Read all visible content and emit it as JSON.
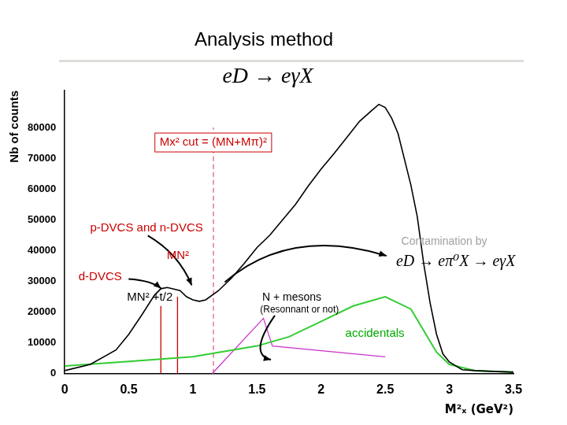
{
  "chart_data": {
    "type": "line",
    "title": "Analysis method",
    "subtitle": "eD → eγX",
    "x_label": "M²ₓ (GeV²)",
    "y_label": "Nb of counts",
    "xlim": [
      0,
      3.5
    ],
    "xticks": [
      0,
      0.5,
      1,
      1.5,
      2,
      2.5,
      3,
      3.5
    ],
    "ylim": [
      0,
      92000
    ],
    "yticks": [
      0,
      10000,
      20000,
      30000,
      40000,
      50000,
      60000,
      70000,
      80000
    ],
    "grid": false,
    "series": [
      {
        "color": "#000000",
        "x": [
          0,
          0.2,
          0.4,
          0.5,
          0.6,
          0.7,
          0.75,
          0.8,
          0.85,
          0.9,
          0.95,
          1.0,
          1.05,
          1.1,
          1.2,
          1.3,
          1.4,
          1.5,
          1.6,
          1.7,
          1.8,
          1.9,
          2.0,
          2.1,
          2.2,
          2.3,
          2.4,
          2.45,
          2.5,
          2.55,
          2.6,
          2.7,
          2.75,
          2.8,
          2.85,
          2.9,
          2.95,
          3.0,
          3.1,
          3.2,
          3.3,
          3.5
        ],
        "values": [
          1000,
          3000,
          7700,
          12800,
          19000,
          25500,
          27600,
          28000,
          27500,
          27000,
          25000,
          24000,
          23500,
          24000,
          27000,
          31000,
          35800,
          41000,
          45000,
          50000,
          55000,
          61000,
          66500,
          71500,
          76700,
          82000,
          85700,
          87500,
          86500,
          83000,
          78000,
          61300,
          51000,
          35800,
          23000,
          12800,
          6400,
          3800,
          1300,
          1000,
          800,
          500
        ]
      },
      {
        "color": "#33cc33",
        "x": [
          0,
          0.5,
          1.0,
          1.5,
          1.75,
          2.0,
          2.25,
          2.5,
          2.7,
          2.8,
          2.9,
          3.0,
          3.2,
          3.5
        ],
        "values": [
          2500,
          4000,
          5500,
          9000,
          12000,
          17000,
          22000,
          25000,
          21000,
          14000,
          7000,
          3000,
          1000,
          500
        ]
      },
      {
        "color": "#cc33cc",
        "x": [
          1.15,
          1.55,
          1.62,
          2.5
        ],
        "values": [
          0,
          18000,
          9000,
          5500
        ]
      },
      {
        "color": "#cc0000",
        "x": [
          0.75,
          0.75
        ],
        "values": [
          0,
          22000
        ]
      },
      {
        "color": "#cc0000",
        "x": [
          0.88,
          0.88
        ],
        "values": [
          0,
          25000
        ]
      },
      {
        "color": "#e0607e",
        "line_style": "dashed",
        "x": [
          1.16,
          1.16
        ],
        "values": [
          0,
          80000
        ]
      }
    ],
    "annotations": [
      {
        "text": "Mx² cut = (MN+Mπ)²",
        "color": "#cc0000"
      },
      {
        "text": "p-DVCS and n-DVCS",
        "color": "#cc0000"
      },
      {
        "text": "MN²",
        "color": "#cc0000"
      },
      {
        "text": "d-DVCS",
        "color": "#cc0000"
      },
      {
        "text": "MN² +t/2",
        "color": "#000000"
      },
      {
        "text": "N + mesons",
        "color": "#000000"
      },
      {
        "text": "(Resonnant or not)",
        "color": "#000000"
      },
      {
        "text": "accidentals",
        "color": "#00aa00"
      },
      {
        "text": "Contamination by",
        "color": "#a0a0a0"
      },
      {
        "text": "eD → eπ⁰X → eγX",
        "color": "#000000"
      }
    ]
  }
}
